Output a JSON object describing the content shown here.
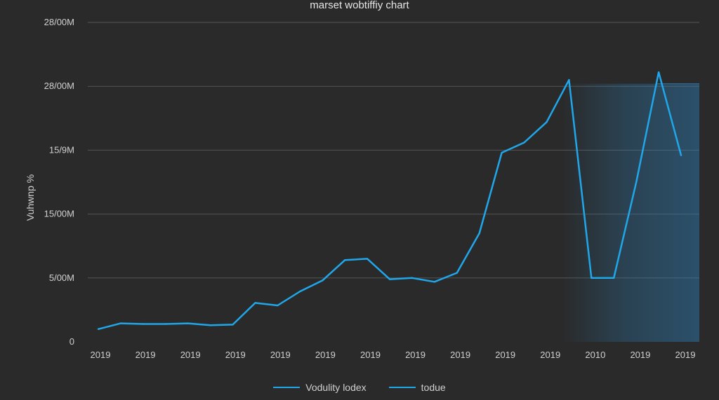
{
  "chart_data": {
    "type": "line",
    "title": "marset wobtiffiy chart",
    "xlabel": "",
    "ylabel": "Vuhwnp %",
    "y_ticks": [
      "0",
      "5/00M",
      "15/00M",
      "15/9M",
      "28/00M",
      "28/00M"
    ],
    "x_ticks": [
      "2019",
      "2019",
      "2019",
      "2019",
      "2019",
      "2019",
      "2019",
      "2019",
      "2019",
      "2019",
      "2019",
      "2010",
      "2019",
      "2019"
    ],
    "series": [
      {
        "name": "Vodulity lodex",
        "color": "#20a7ea",
        "values": [
          1.0,
          1.45,
          1.4,
          1.4,
          1.45,
          1.3,
          1.35,
          3.05,
          2.85,
          3.95,
          4.8,
          6.4,
          6.5,
          4.9,
          5.0,
          4.7,
          5.4,
          8.5,
          14.8,
          15.6,
          17.2,
          20.5,
          5.0,
          5.0,
          12.5,
          21.1,
          14.6
        ]
      }
    ],
    "band": {
      "name": "todue",
      "color": "#2c7fb8"
    },
    "ylim": [
      0,
      25
    ],
    "grid": true,
    "legend": "bottom"
  }
}
